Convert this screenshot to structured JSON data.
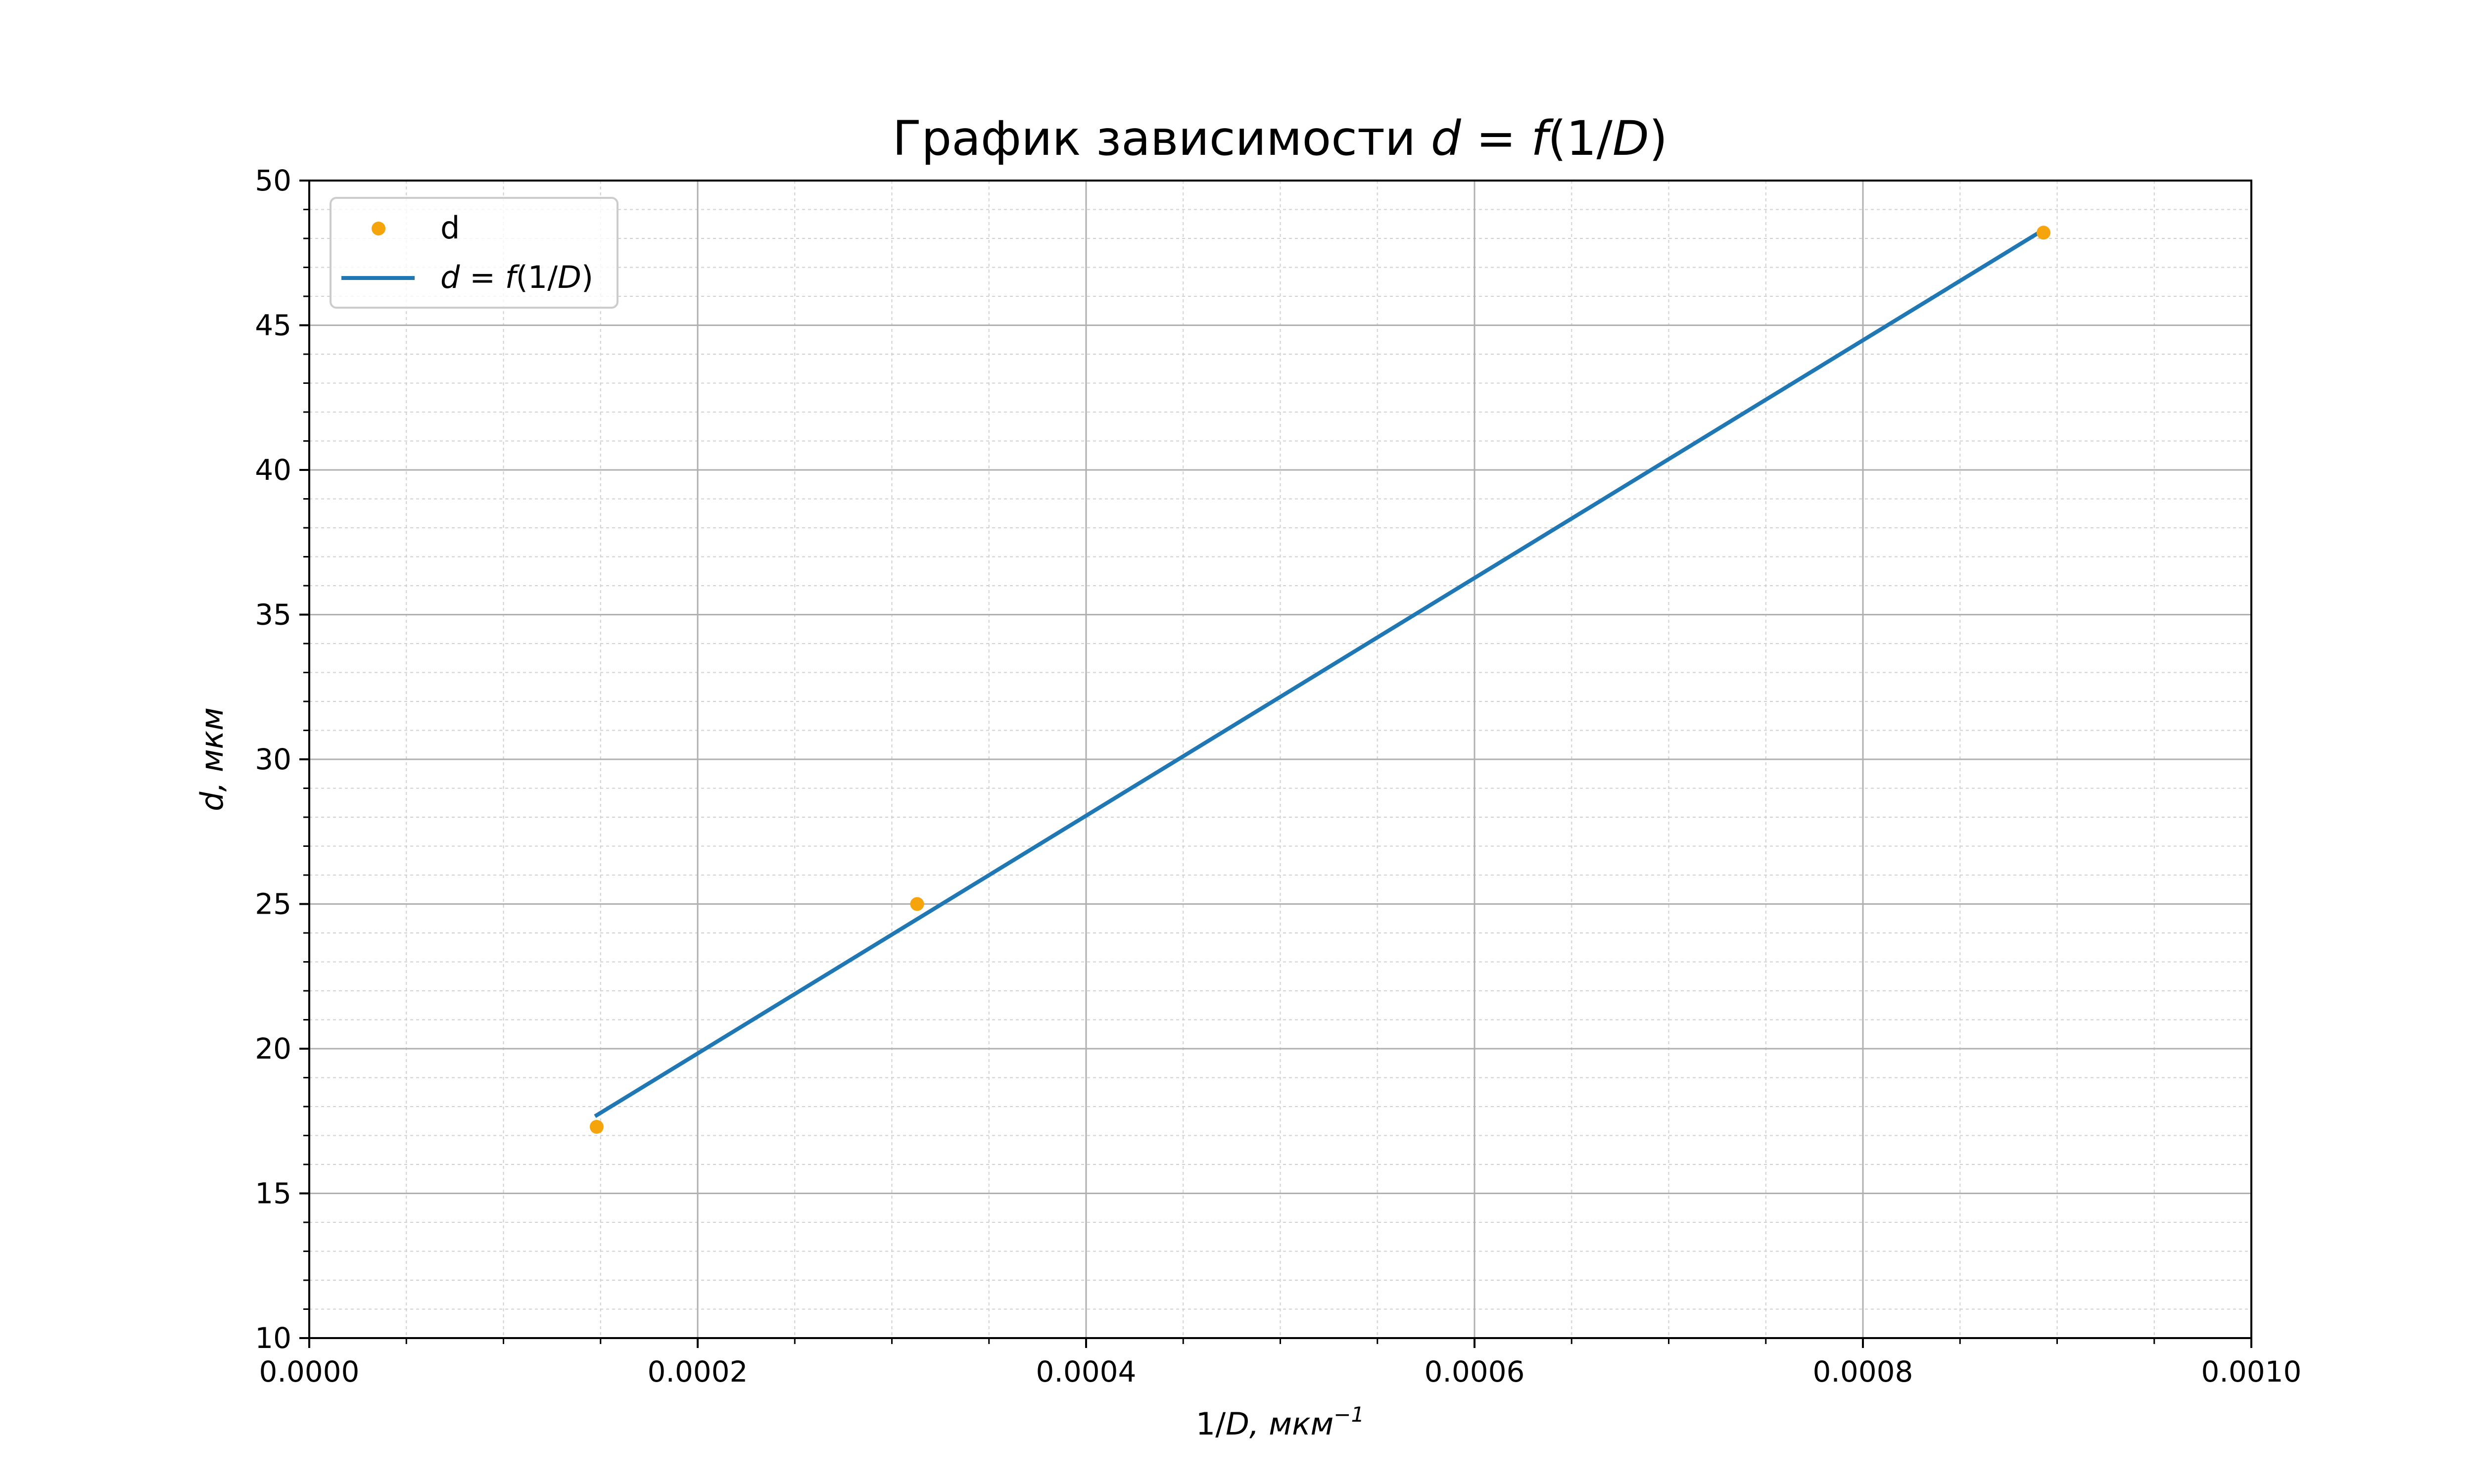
{
  "chart_data": {
    "type": "scatter",
    "title": "График зависимости d = f(1/D)",
    "title_prefix": "График зависимости",
    "xlabel": "1/D,  мкм⁻¹",
    "xlabel_unit": "мкм",
    "xlabel_exp": "−1",
    "ylabel": "d,  мкм",
    "ylabel_unit": "мкм",
    "xlim": [
      0.0,
      0.001
    ],
    "ylim": [
      10,
      50
    ],
    "x_ticks": [
      "0.0000",
      "0.0002",
      "0.0004",
      "0.0006",
      "0.0008",
      "0.0010"
    ],
    "y_ticks": [
      "10",
      "15",
      "20",
      "25",
      "30",
      "35",
      "40",
      "45",
      "50"
    ],
    "grid": true,
    "minor_grid": true,
    "legend_position": "upper-left",
    "series": [
      {
        "name": "d",
        "kind": "scatter",
        "color": "#f5a40c",
        "x": [
          0.000148,
          0.000313,
          0.000893
        ],
        "y": [
          17.3,
          25.0,
          48.2
        ]
      },
      {
        "name": "d = f(1/D)",
        "kind": "line",
        "color": "#1f77b4",
        "x": [
          0.000148,
          0.000893
        ],
        "y": [
          17.7,
          48.3
        ]
      }
    ]
  }
}
